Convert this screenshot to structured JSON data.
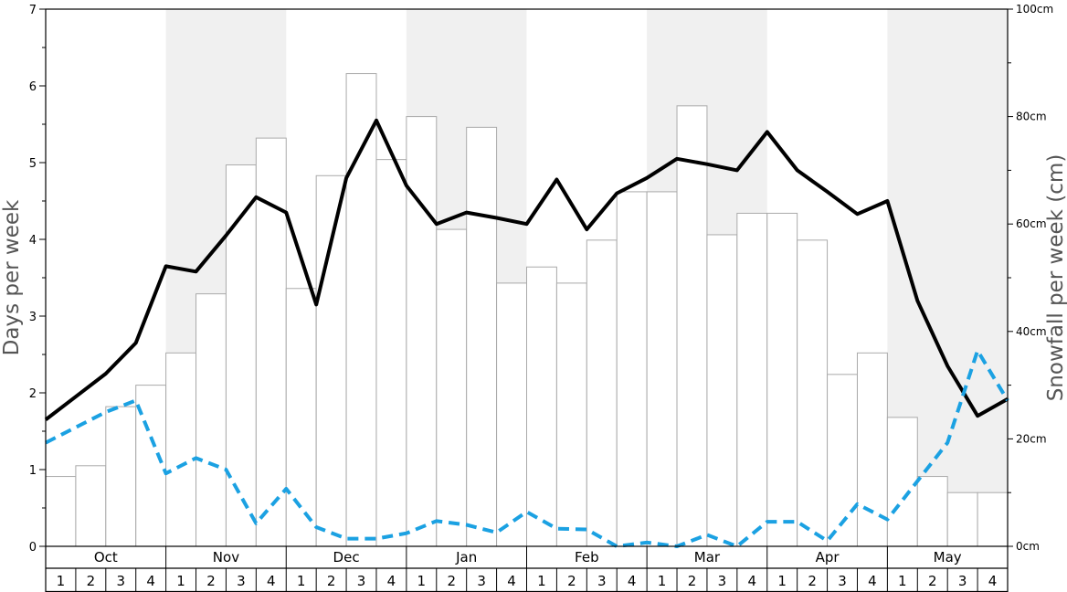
{
  "chart_data": {
    "type": "bar",
    "left_axis": {
      "label": "Days per week",
      "ylim": [
        0,
        7
      ],
      "ticks": [
        "0",
        "1",
        "2",
        "3",
        "4",
        "5",
        "6",
        "7"
      ]
    },
    "right_axis": {
      "label": "Snowfall per week (cm)",
      "ylim": [
        0,
        100
      ],
      "ticks": [
        "0cm",
        "20cm",
        "40cm",
        "60cm",
        "80cm",
        "100cm"
      ]
    },
    "months": [
      "Oct",
      "Nov",
      "Dec",
      "Jan",
      "Feb",
      "Mar",
      "Apr",
      "May"
    ],
    "week_labels": [
      "1",
      "2",
      "3",
      "4"
    ],
    "shaded_months": [
      1,
      3,
      5,
      7
    ],
    "colors": {
      "bar_fill": "#ffffff",
      "bar_stroke": "#aaaaaa",
      "shade": "#f0f0f0",
      "solid_line": "#000000",
      "dashed_line": "#1ba1e2",
      "axis": "#000000"
    },
    "series": [
      {
        "type": "bar",
        "axis": "right",
        "values": [
          13,
          15,
          26,
          30,
          36,
          47,
          71,
          76,
          48,
          69,
          88,
          72,
          80,
          59,
          78,
          49,
          52,
          49,
          57,
          66,
          66,
          82,
          58,
          62,
          62,
          57,
          32,
          36,
          24,
          13,
          10,
          10
        ]
      },
      {
        "type": "line",
        "style": "solid",
        "axis": "left",
        "values": [
          1.65,
          1.95,
          2.25,
          2.65,
          3.65,
          3.58,
          4.05,
          4.55,
          4.35,
          3.15,
          4.8,
          5.55,
          4.7,
          4.2,
          4.35,
          4.28,
          4.2,
          4.78,
          4.13,
          4.6,
          4.8,
          5.05,
          4.98,
          4.9,
          5.4,
          4.9,
          4.62,
          4.33,
          4.5,
          3.2,
          2.35,
          1.7,
          1.92
        ]
      },
      {
        "type": "line",
        "style": "dashed",
        "axis": "left",
        "values": [
          1.35,
          1.55,
          1.75,
          1.9,
          0.95,
          1.15,
          1.0,
          0.3,
          0.75,
          0.25,
          0.1,
          0.1,
          0.17,
          0.33,
          0.28,
          0.18,
          0.45,
          0.23,
          0.22,
          0.0,
          0.05,
          0.0,
          0.15,
          0.0,
          0.32,
          0.32,
          0.07,
          0.55,
          0.35,
          0.85,
          1.35,
          2.55,
          1.9
        ]
      }
    ]
  }
}
